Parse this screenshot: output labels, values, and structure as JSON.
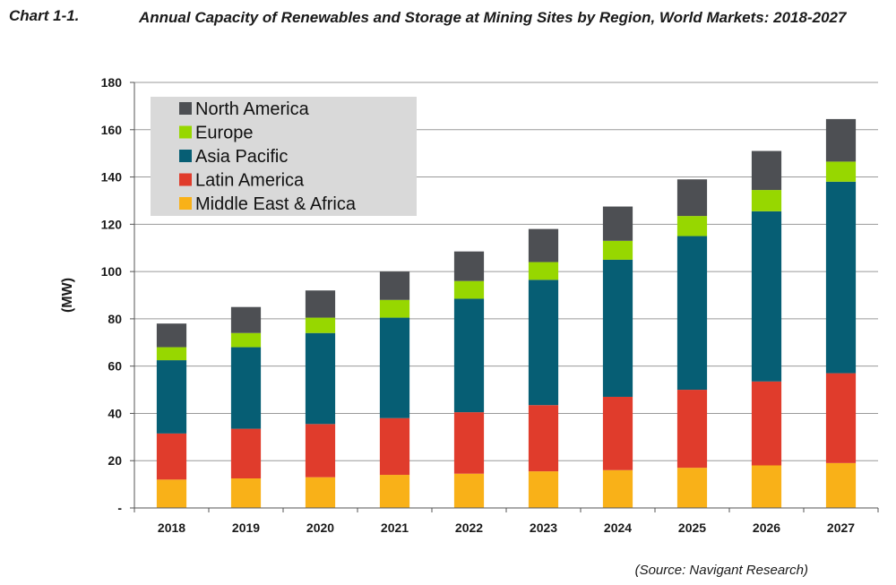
{
  "header": {
    "chart_number": "Chart 1-1.",
    "title": "Annual Capacity of Renewables and Storage at Mining Sites by Region, World Markets: 2018-2027"
  },
  "footer": {
    "source": "(Source: Navigant Research)"
  },
  "chart_data": {
    "type": "bar",
    "stacked": true,
    "title": "Annual Capacity of Renewables and Storage at Mining Sites by Region, World Markets: 2018-2027",
    "xlabel": "",
    "ylabel": "(MW)",
    "ylim": [
      0,
      180
    ],
    "yticks": [
      0,
      20,
      40,
      60,
      80,
      100,
      120,
      140,
      160,
      180
    ],
    "ytick_labels": [
      "-",
      "20",
      "40",
      "60",
      "80",
      "100",
      "120",
      "140",
      "160",
      "180"
    ],
    "grid": "horizontal",
    "legend_position": "top-left",
    "categories": [
      "2018",
      "2019",
      "2020",
      "2021",
      "2022",
      "2023",
      "2024",
      "2025",
      "2026",
      "2027"
    ],
    "series": [
      {
        "name": "Middle East & Africa",
        "color": "#f9b118",
        "values": [
          12,
          12.5,
          13,
          14,
          14.5,
          15.5,
          16,
          17,
          18,
          19
        ]
      },
      {
        "name": "Latin America",
        "color": "#e03c2c",
        "values": [
          19.5,
          21,
          22.5,
          24,
          26,
          28,
          31,
          33,
          35.5,
          38
        ]
      },
      {
        "name": "Asia Pacific",
        "color": "#065e74",
        "values": [
          31,
          34.5,
          38.5,
          42.5,
          48,
          53,
          58,
          65,
          72,
          81
        ]
      },
      {
        "name": "Europe",
        "color": "#97d700",
        "values": [
          5.5,
          6,
          6.5,
          7.5,
          7.5,
          7.5,
          8,
          8.5,
          9,
          8.5
        ]
      },
      {
        "name": "North America",
        "color": "#4d4f53",
        "values": [
          10,
          11,
          11.5,
          12,
          12.5,
          14,
          14.5,
          15.5,
          16.5,
          18
        ]
      }
    ],
    "legend_order": [
      "North America",
      "Europe",
      "Asia Pacific",
      "Latin America",
      "Middle East & Africa"
    ]
  }
}
